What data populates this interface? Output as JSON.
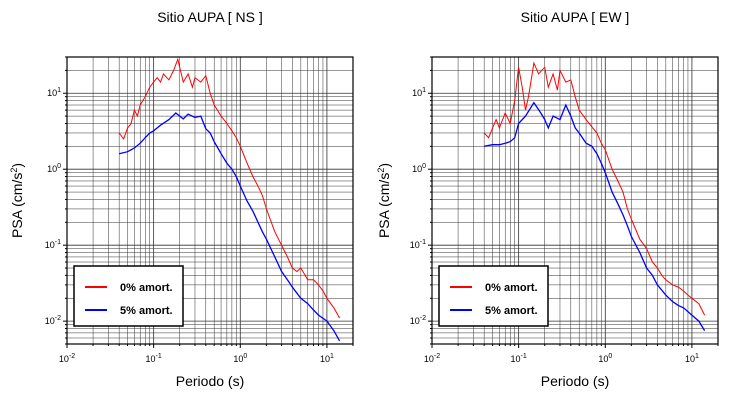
{
  "chart_data": [
    {
      "type": "line",
      "title": "Sitio AUPA [ NS ]",
      "xlabel": "Periodo (s)",
      "ylabel_main": "PSA (cm/s",
      "ylabel_sup": "2",
      "ylabel_end": ")",
      "x_scale": "log",
      "y_scale": "log",
      "xlim": [
        0.01,
        20
      ],
      "ylim": [
        0.005,
        30
      ],
      "x_ticks": [
        {
          "value": 0.01,
          "base": "10",
          "exp": "-2"
        },
        {
          "value": 0.1,
          "base": "10",
          "exp": "-1"
        },
        {
          "value": 1,
          "base": "10",
          "exp": "0"
        },
        {
          "value": 10,
          "base": "10",
          "exp": "1"
        }
      ],
      "y_ticks": [
        {
          "value": 0.01,
          "base": "10",
          "exp": "-2"
        },
        {
          "value": 0.1,
          "base": "10",
          "exp": "-1"
        },
        {
          "value": 1,
          "base": "10",
          "exp": "0"
        },
        {
          "value": 10,
          "base": "10",
          "exp": "1"
        }
      ],
      "grid": true,
      "legend_position": "bottom-left",
      "series": [
        {
          "name": "0% amort.",
          "color": "#ff0000",
          "x": [
            0.04,
            0.045,
            0.05,
            0.055,
            0.06,
            0.065,
            0.07,
            0.08,
            0.09,
            0.1,
            0.11,
            0.12,
            0.13,
            0.15,
            0.17,
            0.19,
            0.2,
            0.22,
            0.25,
            0.28,
            0.3,
            0.35,
            0.4,
            0.45,
            0.5,
            0.6,
            0.7,
            0.8,
            0.9,
            1.0,
            1.2,
            1.4,
            1.6,
            1.8,
            2.0,
            2.5,
            3.0,
            3.5,
            4.0,
            4.5,
            5,
            6,
            7,
            8,
            9,
            10,
            12,
            14
          ],
          "values": [
            3.0,
            2.5,
            3.5,
            4.0,
            6.0,
            5.0,
            7.0,
            9.0,
            12.0,
            14.0,
            16.0,
            14.0,
            18.0,
            15.0,
            20.0,
            28.0,
            22.0,
            14.0,
            18.0,
            12.0,
            16.0,
            14.0,
            17.0,
            10.0,
            7.0,
            5.0,
            4.0,
            3.2,
            2.6,
            2.0,
            1.2,
            0.8,
            0.6,
            0.45,
            0.3,
            0.15,
            0.1,
            0.07,
            0.05,
            0.045,
            0.05,
            0.035,
            0.035,
            0.03,
            0.025,
            0.02,
            0.015,
            0.011
          ]
        },
        {
          "name": "5% amort.",
          "color": "#0000ff",
          "x": [
            0.04,
            0.05,
            0.06,
            0.07,
            0.08,
            0.09,
            0.1,
            0.12,
            0.15,
            0.18,
            0.2,
            0.22,
            0.25,
            0.3,
            0.35,
            0.4,
            0.45,
            0.5,
            0.6,
            0.7,
            0.8,
            0.9,
            1.0,
            1.2,
            1.4,
            1.6,
            1.8,
            2.0,
            2.5,
            3.0,
            3.5,
            4.0,
            5,
            6,
            7,
            8,
            10,
            12,
            14
          ],
          "values": [
            1.6,
            1.7,
            1.9,
            2.2,
            2.6,
            3.0,
            3.2,
            3.8,
            4.5,
            5.5,
            5.0,
            4.6,
            5.3,
            4.8,
            5.0,
            3.4,
            3.0,
            2.3,
            1.6,
            1.2,
            1.0,
            0.8,
            0.6,
            0.38,
            0.28,
            0.2,
            0.15,
            0.12,
            0.07,
            0.045,
            0.035,
            0.028,
            0.02,
            0.017,
            0.014,
            0.012,
            0.01,
            0.0075,
            0.0055
          ]
        }
      ]
    },
    {
      "type": "line",
      "title": "Sitio AUPA [ EW ]",
      "xlabel": "Periodo (s)",
      "ylabel_main": "PSA (cm/s",
      "ylabel_sup": "2",
      "ylabel_end": ")",
      "x_scale": "log",
      "y_scale": "log",
      "xlim": [
        0.01,
        20
      ],
      "ylim": [
        0.005,
        30
      ],
      "x_ticks": [
        {
          "value": 0.01,
          "base": "10",
          "exp": "-2"
        },
        {
          "value": 0.1,
          "base": "10",
          "exp": "-1"
        },
        {
          "value": 1,
          "base": "10",
          "exp": "0"
        },
        {
          "value": 10,
          "base": "10",
          "exp": "1"
        }
      ],
      "y_ticks": [
        {
          "value": 0.01,
          "base": "10",
          "exp": "-2"
        },
        {
          "value": 0.1,
          "base": "10",
          "exp": "-1"
        },
        {
          "value": 1,
          "base": "10",
          "exp": "0"
        },
        {
          "value": 10,
          "base": "10",
          "exp": "1"
        }
      ],
      "grid": true,
      "legend_position": "bottom-left",
      "series": [
        {
          "name": "0% amort.",
          "color": "#ff0000",
          "x": [
            0.04,
            0.045,
            0.05,
            0.055,
            0.06,
            0.07,
            0.08,
            0.09,
            0.1,
            0.11,
            0.12,
            0.13,
            0.15,
            0.17,
            0.2,
            0.22,
            0.25,
            0.28,
            0.3,
            0.35,
            0.4,
            0.45,
            0.5,
            0.6,
            0.7,
            0.8,
            0.9,
            1.0,
            1.2,
            1.4,
            1.6,
            1.8,
            2.0,
            2.5,
            3.0,
            3.5,
            4.0,
            4.5,
            5,
            6,
            7,
            8,
            9,
            10,
            12,
            14
          ],
          "values": [
            3.0,
            2.6,
            3.5,
            4.5,
            3.5,
            5.5,
            4.0,
            8.0,
            22.0,
            12.0,
            6.0,
            9.0,
            25.0,
            18.0,
            22.0,
            12.0,
            18.0,
            11.0,
            20.0,
            14.0,
            15.0,
            9.0,
            6.0,
            4.5,
            3.6,
            3.0,
            2.2,
            1.8,
            1.0,
            0.7,
            0.5,
            0.3,
            0.22,
            0.12,
            0.09,
            0.06,
            0.05,
            0.04,
            0.035,
            0.03,
            0.028,
            0.025,
            0.022,
            0.02,
            0.017,
            0.012
          ]
        },
        {
          "name": "5% amort.",
          "color": "#0000ff",
          "x": [
            0.04,
            0.05,
            0.06,
            0.07,
            0.08,
            0.09,
            0.1,
            0.12,
            0.15,
            0.18,
            0.2,
            0.22,
            0.25,
            0.3,
            0.35,
            0.4,
            0.45,
            0.5,
            0.6,
            0.7,
            0.8,
            0.9,
            1.0,
            1.2,
            1.4,
            1.6,
            1.8,
            2.0,
            2.5,
            3.0,
            3.5,
            4.0,
            5,
            6,
            7,
            8,
            10,
            12,
            14
          ],
          "values": [
            2.0,
            2.1,
            2.1,
            2.2,
            2.3,
            2.6,
            4.0,
            5.0,
            7.5,
            5.5,
            4.5,
            3.5,
            5.0,
            4.5,
            7.0,
            5.0,
            3.5,
            3.0,
            2.2,
            2.0,
            1.6,
            1.2,
            0.9,
            0.5,
            0.35,
            0.25,
            0.18,
            0.13,
            0.08,
            0.05,
            0.04,
            0.03,
            0.022,
            0.018,
            0.016,
            0.015,
            0.012,
            0.01,
            0.0075
          ]
        }
      ]
    }
  ]
}
